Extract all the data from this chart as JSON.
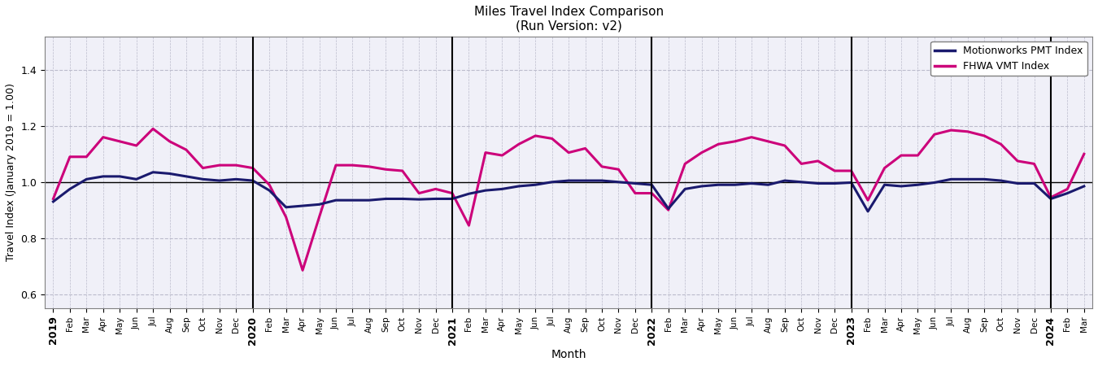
{
  "title": "Miles Travel Index Comparison\n(Run Version: v2)",
  "xlabel": "Month",
  "ylabel": "Travel Index (January 2019 = 1.00)",
  "ylim": [
    0.55,
    1.52
  ],
  "yticks": [
    0.6,
    0.8,
    1.0,
    1.2,
    1.4
  ],
  "legend_labels": [
    "Motionworks PMT Index",
    "FHWA VMT Index"
  ],
  "pmt_color": "#1a1a6e",
  "fhwa_color": "#cc007a",
  "grid_color": "#bbbbcc",
  "background_color": "#f0f0f8",
  "tick_labels": [
    "2019",
    "Feb",
    "Mar",
    "Apr",
    "May",
    "Jun",
    "Jul",
    "Aug",
    "Sep",
    "Oct",
    "Nov",
    "Dec",
    "2020",
    "Feb",
    "Mar",
    "Apr",
    "May",
    "Jun",
    "Jul",
    "Aug",
    "Sep",
    "Oct",
    "Nov",
    "Dec",
    "2021",
    "Feb",
    "Mar",
    "Apr",
    "May",
    "Jun",
    "Jul",
    "Aug",
    "Sep",
    "Oct",
    "Nov",
    "Dec",
    "2022",
    "Feb",
    "Mar",
    "Apr",
    "May",
    "Jun",
    "Jul",
    "Aug",
    "Sep",
    "Oct",
    "Nov",
    "Dec",
    "2023",
    "Feb",
    "Mar",
    "Apr",
    "May",
    "Jun",
    "Jul",
    "Aug",
    "Sep",
    "Oct",
    "Nov",
    "Dec",
    "2024",
    "Feb",
    "Mar"
  ],
  "vline_positions": [
    12,
    24,
    36,
    48,
    60
  ],
  "pmt_values": [
    0.93,
    0.975,
    1.01,
    1.02,
    1.02,
    1.01,
    1.035,
    1.03,
    1.02,
    1.01,
    1.005,
    1.01,
    1.005,
    0.97,
    0.91,
    0.915,
    0.92,
    0.935,
    0.935,
    0.935,
    0.94,
    0.94,
    0.938,
    0.94,
    0.94,
    0.958,
    0.97,
    0.975,
    0.985,
    0.99,
    1.0,
    1.005,
    1.005,
    1.005,
    1.0,
    0.995,
    0.99,
    0.905,
    0.975,
    0.985,
    0.99,
    0.99,
    0.995,
    0.99,
    1.005,
    1.0,
    0.995,
    0.995,
    0.998,
    0.895,
    0.99,
    0.985,
    0.99,
    0.998,
    1.01,
    1.01,
    1.01,
    1.005,
    0.995,
    0.995,
    0.94,
    0.96,
    0.985
  ],
  "fhwa_values": [
    0.94,
    1.09,
    1.09,
    1.16,
    1.145,
    1.13,
    1.19,
    1.145,
    1.115,
    1.05,
    1.06,
    1.06,
    1.05,
    0.99,
    0.875,
    0.685,
    0.875,
    1.06,
    1.06,
    1.055,
    1.045,
    1.04,
    0.96,
    0.975,
    0.96,
    0.845,
    1.105,
    1.095,
    1.135,
    1.165,
    1.155,
    1.105,
    1.12,
    1.055,
    1.045,
    0.96,
    0.96,
    0.9,
    1.065,
    1.105,
    1.135,
    1.145,
    1.16,
    1.145,
    1.13,
    1.065,
    1.075,
    1.04,
    1.04,
    0.935,
    1.05,
    1.095,
    1.095,
    1.17,
    1.185,
    1.18,
    1.165,
    1.135,
    1.075,
    1.065,
    0.945,
    0.975,
    1.1
  ]
}
